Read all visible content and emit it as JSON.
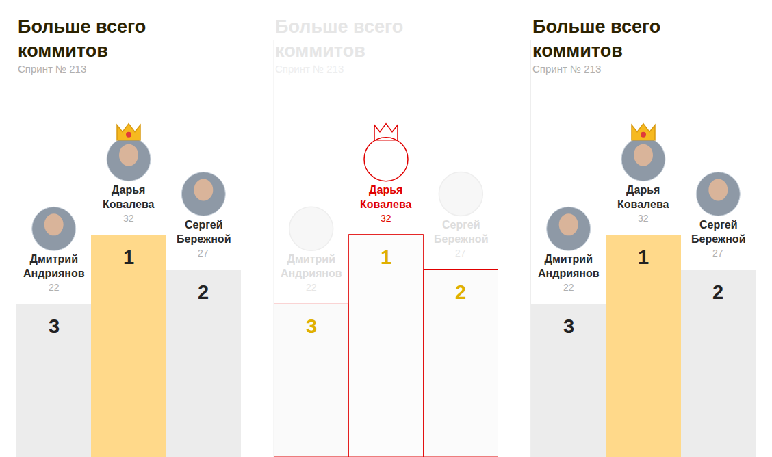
{
  "chart_data": [
    {
      "type": "bar",
      "title": "Больше всего коммитов",
      "subtitle": "Спринт № 213",
      "categories": [
        "Дмитрий Андриянов",
        "Дарья Ковалева",
        "Сергей Бережной"
      ],
      "values": [
        22,
        32,
        27
      ],
      "ranks": [
        3,
        1,
        2
      ],
      "colors": [
        "#ececec",
        "#ffd98a",
        "#ececec"
      ],
      "ylim": [
        0,
        60
      ],
      "yticks": [],
      "tick_labels": false,
      "data_labels": true
    },
    {
      "type": "bar",
      "title": "Больше всего коммитов",
      "subtitle": "Спринт № 213",
      "categories": [
        "Дмитрий Андриянов",
        "Дарья Ковалева",
        "Сергей Бережной"
      ],
      "values": [
        22,
        32,
        27
      ],
      "ranks": [
        3,
        1,
        2
      ],
      "colors": [
        "#fafafa",
        "#fcfcfc",
        "#fbfbfb"
      ],
      "ylim": [
        0,
        60
      ],
      "yticks": [],
      "tick_labels": false,
      "data_labels": true
    },
    {
      "type": "bar",
      "title": "Больше всего коммитов",
      "subtitle": "Спринт № 213",
      "categories": [
        "Дмитрий Андриянов",
        "Дарья Ковалева",
        "Сергей Бережной"
      ],
      "values": [
        22,
        32,
        27
      ],
      "ranks": [
        3,
        1,
        2
      ],
      "colors": [
        "#ececec",
        "#ffd98a",
        "#ececec"
      ],
      "ylim": [
        0,
        60
      ],
      "yticks": [],
      "tick_labels": false,
      "data_labels": true
    }
  ]
}
